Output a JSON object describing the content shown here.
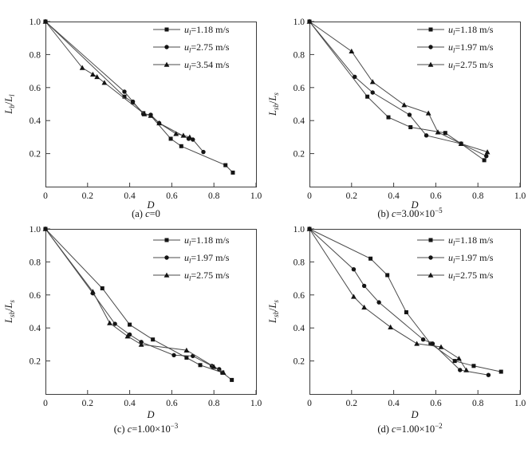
{
  "palette": {
    "line": "#4a4a4a",
    "marker": "#141414",
    "frame": "#3c3c3c",
    "text": "#141414",
    "background": "#ffffff"
  },
  "chart_data": [
    {
      "id": "a",
      "type": "line",
      "caption": {
        "prefix": "(a) ",
        "var": "c",
        "eq": "=0",
        "exp": ""
      },
      "xlabel": "D",
      "ylabel": {
        "l1": "L",
        "sub1": "b",
        "sep": "/",
        "l2": "L",
        "sub2": "l"
      },
      "xlim": [
        0,
        1.0
      ],
      "ylim": [
        0,
        1.0
      ],
      "xticks": [
        0,
        0.2,
        0.4,
        0.6,
        0.8,
        1.0
      ],
      "xtick_labels": [
        "0",
        "0.2",
        "0.4",
        "0.6",
        "0.8",
        "1.0"
      ],
      "yticks": [
        0.2,
        0.4,
        0.6,
        0.8,
        1.0
      ],
      "ytick_labels": [
        "0.2",
        "0.4",
        "0.6",
        "0.8",
        "1.0"
      ],
      "grid": false,
      "legend_pos": "top-right",
      "series": [
        {
          "name": "u_l=1.18 m/s",
          "label": {
            "var": "u",
            "sub": "l",
            "rest": "=1.18 m/s"
          },
          "marker": "square",
          "points": [
            [
              0,
              1.0
            ],
            [
              0.375,
              0.545
            ],
            [
              0.415,
              0.51
            ],
            [
              0.465,
              0.445
            ],
            [
              0.5,
              0.43
            ],
            [
              0.595,
              0.29
            ],
            [
              0.645,
              0.245
            ],
            [
              0.855,
              0.13
            ],
            [
              0.89,
              0.085
            ]
          ]
        },
        {
          "name": "u_l=2.75 m/s",
          "label": {
            "var": "u",
            "sub": "l",
            "rest": "=2.75 m/s"
          },
          "marker": "circle",
          "points": [
            [
              0,
              1.0
            ],
            [
              0.375,
              0.575
            ],
            [
              0.415,
              0.515
            ],
            [
              0.465,
              0.44
            ],
            [
              0.5,
              0.435
            ],
            [
              0.54,
              0.385
            ],
            [
              0.68,
              0.29
            ],
            [
              0.7,
              0.285
            ],
            [
              0.75,
              0.21
            ]
          ]
        },
        {
          "name": "u_l=3.54 m/s",
          "label": {
            "var": "u",
            "sub": "l",
            "rest": "=3.54 m/s"
          },
          "marker": "triangle",
          "points": [
            [
              0,
              1.0
            ],
            [
              0.175,
              0.72
            ],
            [
              0.225,
              0.68
            ],
            [
              0.245,
              0.665
            ],
            [
              0.28,
              0.63
            ],
            [
              0.47,
              0.44
            ],
            [
              0.5,
              0.43
            ],
            [
              0.54,
              0.385
            ],
            [
              0.62,
              0.32
            ],
            [
              0.655,
              0.31
            ],
            [
              0.685,
              0.3
            ]
          ]
        }
      ]
    },
    {
      "id": "b",
      "type": "line",
      "caption": {
        "prefix": "(b) ",
        "var": "c",
        "eq": "=3.00×10",
        "exp": "−5"
      },
      "xlabel": "D",
      "ylabel": {
        "l1": "L",
        "sub1": "sb",
        "sep": "/",
        "l2": "L",
        "sub2": "s"
      },
      "xlim": [
        0,
        1.0
      ],
      "ylim": [
        0,
        1.0
      ],
      "xticks": [
        0,
        0.2,
        0.4,
        0.6,
        0.8,
        1.0
      ],
      "xtick_labels": [
        "0",
        "0.2",
        "0.4",
        "0.6",
        "0.8",
        "1.0"
      ],
      "yticks": [
        0.2,
        0.4,
        0.6,
        0.8,
        1.0
      ],
      "ytick_labels": [
        "0.2",
        "0.4",
        "0.6",
        "0.8",
        "1.0"
      ],
      "grid": false,
      "legend_pos": "top-right",
      "series": [
        {
          "name": "u_l=1.18 m/s",
          "label": {
            "var": "u",
            "sub": "l",
            "rest": "=1.18 m/s"
          },
          "marker": "square",
          "points": [
            [
              0,
              1.0
            ],
            [
              0.275,
              0.545
            ],
            [
              0.375,
              0.42
            ],
            [
              0.48,
              0.36
            ],
            [
              0.645,
              0.325
            ],
            [
              0.72,
              0.26
            ],
            [
              0.83,
              0.16
            ]
          ]
        },
        {
          "name": "u_l=1.97 m/s",
          "label": {
            "var": "u",
            "sub": "l",
            "rest": "=1.97 m/s"
          },
          "marker": "circle",
          "points": [
            [
              0,
              1.0
            ],
            [
              0.215,
              0.665
            ],
            [
              0.3,
              0.57
            ],
            [
              0.475,
              0.435
            ],
            [
              0.555,
              0.31
            ],
            [
              0.72,
              0.26
            ],
            [
              0.84,
              0.185
            ]
          ]
        },
        {
          "name": "u_l=2.75 m/s",
          "label": {
            "var": "u",
            "sub": "l",
            "rest": "=2.75 m/s"
          },
          "marker": "triangle",
          "points": [
            [
              0,
              1.0
            ],
            [
              0.2,
              0.82
            ],
            [
              0.3,
              0.635
            ],
            [
              0.45,
              0.495
            ],
            [
              0.565,
              0.445
            ],
            [
              0.61,
              0.33
            ],
            [
              0.72,
              0.26
            ],
            [
              0.845,
              0.21
            ]
          ]
        }
      ]
    },
    {
      "id": "c",
      "type": "line",
      "caption": {
        "prefix": "(c) ",
        "var": "c",
        "eq": "=1.00×10",
        "exp": "−3"
      },
      "xlabel": "D",
      "ylabel": {
        "l1": "L",
        "sub1": "sb",
        "sep": "/",
        "l2": "L",
        "sub2": "s"
      },
      "xlim": [
        0,
        1.0
      ],
      "ylim": [
        0,
        1.0
      ],
      "xticks": [
        0,
        0.2,
        0.4,
        0.6,
        0.8,
        1.0
      ],
      "xtick_labels": [
        "0",
        "0.2",
        "0.4",
        "0.6",
        "0.8",
        "1.0"
      ],
      "yticks": [
        0.2,
        0.4,
        0.6,
        0.8,
        1.0
      ],
      "ytick_labels": [
        "0.2",
        "0.4",
        "0.6",
        "0.8",
        "1.0"
      ],
      "grid": false,
      "legend_pos": "top-right",
      "series": [
        {
          "name": "u_l=1.18 m/s",
          "label": {
            "var": "u",
            "sub": "l",
            "rest": "=1.18 m/s"
          },
          "marker": "square",
          "points": [
            [
              0,
              1.0
            ],
            [
              0.27,
              0.64
            ],
            [
              0.4,
              0.42
            ],
            [
              0.51,
              0.33
            ],
            [
              0.67,
              0.22
            ],
            [
              0.735,
              0.175
            ],
            [
              0.84,
              0.13
            ],
            [
              0.885,
              0.085
            ]
          ]
        },
        {
          "name": "u_l=1.97 m/s",
          "label": {
            "var": "u",
            "sub": "l",
            "rest": "=1.97 m/s"
          },
          "marker": "circle",
          "points": [
            [
              0,
              1.0
            ],
            [
              0.225,
              0.61
            ],
            [
              0.33,
              0.425
            ],
            [
              0.4,
              0.36
            ],
            [
              0.455,
              0.315
            ],
            [
              0.61,
              0.235
            ],
            [
              0.7,
              0.23
            ],
            [
              0.79,
              0.17
            ],
            [
              0.825,
              0.15
            ]
          ]
        },
        {
          "name": "u_l=2.75 m/s",
          "label": {
            "var": "u",
            "sub": "l",
            "rest": "=2.75 m/s"
          },
          "marker": "triangle",
          "points": [
            [
              0,
              1.0
            ],
            [
              0.225,
              0.62
            ],
            [
              0.305,
              0.43
            ],
            [
              0.39,
              0.35
            ],
            [
              0.455,
              0.3
            ],
            [
              0.67,
              0.265
            ],
            [
              0.8,
              0.165
            ],
            [
              0.845,
              0.13
            ]
          ]
        }
      ]
    },
    {
      "id": "d",
      "type": "line",
      "caption": {
        "prefix": "(d) ",
        "var": "c",
        "eq": "=1.00×10",
        "exp": "−2"
      },
      "xlabel": "D",
      "ylabel": {
        "l1": "L",
        "sub1": "sb",
        "sep": "/",
        "l2": "L",
        "sub2": "s"
      },
      "xlim": [
        0,
        1.0
      ],
      "ylim": [
        0,
        1.0
      ],
      "xticks": [
        0,
        0.2,
        0.4,
        0.6,
        0.8,
        1.0
      ],
      "xtick_labels": [
        "0",
        "0.2",
        "0.4",
        "0.6",
        "0.8",
        "1.0"
      ],
      "yticks": [
        0.2,
        0.4,
        0.6,
        0.8,
        1.0
      ],
      "ytick_labels": [
        "0.2",
        "0.4",
        "0.6",
        "0.8",
        "1.0"
      ],
      "grid": false,
      "legend_pos": "top-right",
      "series": [
        {
          "name": "u_l=1.18 m/s",
          "label": {
            "var": "u",
            "sub": "l",
            "rest": "=1.18 m/s"
          },
          "marker": "square",
          "points": [
            [
              0,
              1.0
            ],
            [
              0.29,
              0.82
            ],
            [
              0.37,
              0.72
            ],
            [
              0.46,
              0.495
            ],
            [
              0.575,
              0.305
            ],
            [
              0.69,
              0.2
            ],
            [
              0.78,
              0.17
            ],
            [
              0.91,
              0.135
            ]
          ]
        },
        {
          "name": "u_l=1.97 m/s",
          "label": {
            "var": "u",
            "sub": "l",
            "rest": "=1.97 m/s"
          },
          "marker": "circle",
          "points": [
            [
              0,
              1.0
            ],
            [
              0.21,
              0.755
            ],
            [
              0.26,
              0.655
            ],
            [
              0.33,
              0.555
            ],
            [
              0.54,
              0.33
            ],
            [
              0.585,
              0.305
            ],
            [
              0.715,
              0.145
            ],
            [
              0.85,
              0.115
            ]
          ]
        },
        {
          "name": "u_l=2.75 m/s",
          "label": {
            "var": "u",
            "sub": "l",
            "rest": "=2.75 m/s"
          },
          "marker": "triangle",
          "points": [
            [
              0,
              1.0
            ],
            [
              0.21,
              0.59
            ],
            [
              0.26,
              0.525
            ],
            [
              0.385,
              0.405
            ],
            [
              0.51,
              0.305
            ],
            [
              0.625,
              0.285
            ],
            [
              0.71,
              0.215
            ],
            [
              0.745,
              0.145
            ]
          ]
        }
      ]
    }
  ]
}
